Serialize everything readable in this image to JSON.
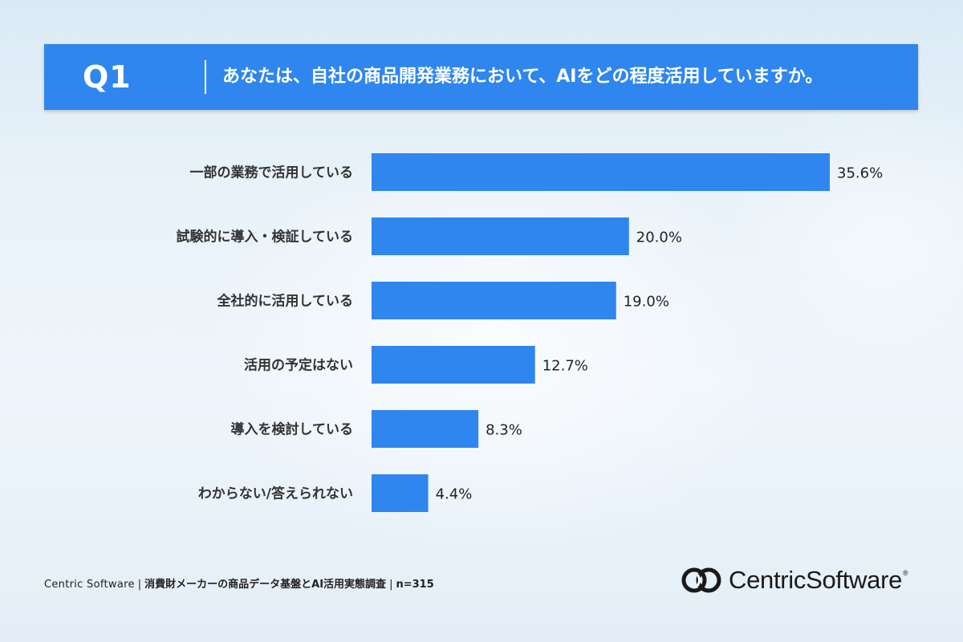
{
  "header": {
    "q_label": "Q1",
    "question": "あなたは、自社の商品開発業務において、AIをどの程度活用していますか。"
  },
  "chart_data": {
    "type": "bar",
    "orientation": "horizontal",
    "categories": [
      "一部の業務で活用している",
      "試験的に導入・検証している",
      "全社的に活用している",
      "活用の予定はない",
      "導入を検討している",
      "わからない/答えられない"
    ],
    "values": [
      35.6,
      20.0,
      19.0,
      12.7,
      8.3,
      4.4
    ],
    "value_labels": [
      "35.6%",
      "20.0%",
      "19.0%",
      "12.7%",
      "8.3%",
      "4.4%"
    ],
    "unit": "%",
    "xlim": [
      0,
      35.6
    ],
    "grid": false,
    "legend": "none",
    "bar_color": "#2f86ee"
  },
  "footer": {
    "source": "Centric Software",
    "separator": "|",
    "survey_title": "消費財メーカーの商品データ基盤とAI活用実態調査",
    "sample": "n=315"
  },
  "logo": {
    "brand": "CentricSoftware",
    "mark": "®",
    "icon": "centric-logo-icon"
  },
  "colors": {
    "accent": "#2f86ee",
    "text": "#333333"
  }
}
